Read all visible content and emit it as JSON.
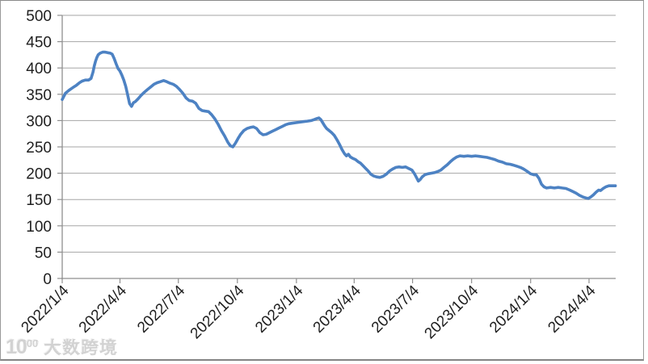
{
  "chart_data": {
    "type": "line",
    "title": "",
    "xlabel": "",
    "ylabel": "",
    "legend": "none",
    "grid": true,
    "ylim": [
      0,
      500
    ],
    "yticks": [
      0,
      50,
      100,
      150,
      200,
      250,
      300,
      350,
      400,
      450,
      500
    ],
    "xtick_labels": [
      "2022/1/4",
      "2022/4/4",
      "2022/7/4",
      "2022/10/4",
      "2023/1/4",
      "2023/4/4",
      "2023/7/4",
      "2023/10/4",
      "2024/1/4",
      "2024/4/4"
    ],
    "series": [
      {
        "name": "series-1",
        "color": "#4D82C3",
        "points": [
          [
            "2022/1/4",
            340
          ],
          [
            "2022/1/9",
            352
          ],
          [
            "2022/1/15",
            358
          ],
          [
            "2022/1/21",
            363
          ],
          [
            "2022/1/26",
            367
          ],
          [
            "2022/1/31",
            372
          ],
          [
            "2022/2/4",
            375
          ],
          [
            "2022/2/9",
            377
          ],
          [
            "2022/2/14",
            377
          ],
          [
            "2022/2/18",
            380
          ],
          [
            "2022/2/21",
            392
          ],
          [
            "2022/2/23",
            404
          ],
          [
            "2022/2/25",
            413
          ],
          [
            "2022/2/27",
            420
          ],
          [
            "2022/3/1",
            425
          ],
          [
            "2022/3/4",
            428
          ],
          [
            "2022/3/8",
            430
          ],
          [
            "2022/3/12",
            430
          ],
          [
            "2022/3/16",
            429
          ],
          [
            "2022/3/20",
            428
          ],
          [
            "2022/3/23",
            426
          ],
          [
            "2022/3/26",
            418
          ],
          [
            "2022/3/29",
            408
          ],
          [
            "2022/4/1",
            399
          ],
          [
            "2022/4/4",
            394
          ],
          [
            "2022/4/7",
            386
          ],
          [
            "2022/4/10",
            377
          ],
          [
            "2022/4/13",
            365
          ],
          [
            "2022/4/16",
            349
          ],
          [
            "2022/4/19",
            332
          ],
          [
            "2022/4/22",
            327
          ],
          [
            "2022/4/25",
            334
          ],
          [
            "2022/4/28",
            336
          ],
          [
            "2022/5/2",
            341
          ],
          [
            "2022/5/7",
            348
          ],
          [
            "2022/5/12",
            354
          ],
          [
            "2022/5/17",
            359
          ],
          [
            "2022/5/22",
            364
          ],
          [
            "2022/5/27",
            369
          ],
          [
            "2022/6/1",
            372
          ],
          [
            "2022/6/6",
            374
          ],
          [
            "2022/6/11",
            376
          ],
          [
            "2022/6/16",
            374
          ],
          [
            "2022/6/21",
            371
          ],
          [
            "2022/6/26",
            369
          ],
          [
            "2022/7/1",
            365
          ],
          [
            "2022/7/6",
            359
          ],
          [
            "2022/7/11",
            352
          ],
          [
            "2022/7/16",
            343
          ],
          [
            "2022/7/21",
            338
          ],
          [
            "2022/7/26",
            337
          ],
          [
            "2022/7/31",
            333
          ],
          [
            "2022/8/5",
            323
          ],
          [
            "2022/8/10",
            319
          ],
          [
            "2022/8/15",
            318
          ],
          [
            "2022/8/20",
            317
          ],
          [
            "2022/8/25",
            311
          ],
          [
            "2022/8/30",
            303
          ],
          [
            "2022/9/4",
            293
          ],
          [
            "2022/9/9",
            281
          ],
          [
            "2022/9/14",
            271
          ],
          [
            "2022/9/19",
            259
          ],
          [
            "2022/9/23",
            252
          ],
          [
            "2022/9/27",
            250
          ],
          [
            "2022/10/1",
            257
          ],
          [
            "2022/10/5",
            266
          ],
          [
            "2022/10/9",
            274
          ],
          [
            "2022/10/14",
            281
          ],
          [
            "2022/10/19",
            285
          ],
          [
            "2022/10/24",
            287
          ],
          [
            "2022/10/29",
            288
          ],
          [
            "2022/11/3",
            285
          ],
          [
            "2022/11/8",
            277
          ],
          [
            "2022/11/13",
            273
          ],
          [
            "2022/11/18",
            274
          ],
          [
            "2022/11/23",
            277
          ],
          [
            "2022/11/28",
            280
          ],
          [
            "2022/12/3",
            283
          ],
          [
            "2022/12/8",
            286
          ],
          [
            "2022/12/13",
            289
          ],
          [
            "2022/12/18",
            292
          ],
          [
            "2022/12/23",
            294
          ],
          [
            "2022/12/28",
            295
          ],
          [
            "2023/1/3",
            296
          ],
          [
            "2023/1/9",
            297
          ],
          [
            "2023/1/15",
            298
          ],
          [
            "2023/1/21",
            299
          ],
          [
            "2023/1/27",
            300
          ],
          [
            "2023/2/1",
            302
          ],
          [
            "2023/2/5",
            304
          ],
          [
            "2023/2/8",
            305
          ],
          [
            "2023/2/11",
            302
          ],
          [
            "2023/2/14",
            296
          ],
          [
            "2023/2/17",
            290
          ],
          [
            "2023/2/20",
            285
          ],
          [
            "2023/2/24",
            281
          ],
          [
            "2023/2/28",
            277
          ],
          [
            "2023/3/4",
            272
          ],
          [
            "2023/3/8",
            264
          ],
          [
            "2023/3/12",
            255
          ],
          [
            "2023/3/16",
            245
          ],
          [
            "2023/3/20",
            237
          ],
          [
            "2023/3/23",
            233
          ],
          [
            "2023/3/26",
            236
          ],
          [
            "2023/3/29",
            231
          ],
          [
            "2023/4/2",
            228
          ],
          [
            "2023/4/6",
            226
          ],
          [
            "2023/4/10",
            222
          ],
          [
            "2023/4/14",
            219
          ],
          [
            "2023/4/18",
            214
          ],
          [
            "2023/4/22",
            209
          ],
          [
            "2023/4/26",
            204
          ],
          [
            "2023/4/30",
            198
          ],
          [
            "2023/5/4",
            195
          ],
          [
            "2023/5/9",
            193
          ],
          [
            "2023/5/14",
            192
          ],
          [
            "2023/5/19",
            194
          ],
          [
            "2023/5/24",
            198
          ],
          [
            "2023/5/29",
            204
          ],
          [
            "2023/6/3",
            208
          ],
          [
            "2023/6/8",
            211
          ],
          [
            "2023/6/13",
            212
          ],
          [
            "2023/6/18",
            211
          ],
          [
            "2023/6/23",
            212
          ],
          [
            "2023/6/28",
            209
          ],
          [
            "2023/7/3",
            206
          ],
          [
            "2023/7/7",
            199
          ],
          [
            "2023/7/10",
            192
          ],
          [
            "2023/7/13",
            185
          ],
          [
            "2023/7/16",
            188
          ],
          [
            "2023/7/19",
            193
          ],
          [
            "2023/7/23",
            197
          ],
          [
            "2023/7/28",
            199
          ],
          [
            "2023/8/2",
            200
          ],
          [
            "2023/8/7",
            201
          ],
          [
            "2023/8/12",
            203
          ],
          [
            "2023/8/17",
            206
          ],
          [
            "2023/8/22",
            211
          ],
          [
            "2023/8/27",
            216
          ],
          [
            "2023/9/1",
            222
          ],
          [
            "2023/9/6",
            227
          ],
          [
            "2023/9/11",
            231
          ],
          [
            "2023/9/16",
            233
          ],
          [
            "2023/9/22",
            232
          ],
          [
            "2023/9/28",
            233
          ],
          [
            "2023/10/4",
            232
          ],
          [
            "2023/10/10",
            233
          ],
          [
            "2023/10/16",
            232
          ],
          [
            "2023/10/22",
            231
          ],
          [
            "2023/10/28",
            230
          ],
          [
            "2023/11/3",
            228
          ],
          [
            "2023/11/9",
            226
          ],
          [
            "2023/11/15",
            223
          ],
          [
            "2023/11/21",
            221
          ],
          [
            "2023/11/27",
            218
          ],
          [
            "2023/12/3",
            217
          ],
          [
            "2023/12/9",
            215
          ],
          [
            "2023/12/14",
            213
          ],
          [
            "2023/12/19",
            211
          ],
          [
            "2023/12/24",
            208
          ],
          [
            "2023/12/29",
            204
          ],
          [
            "2024/1/4",
            199
          ],
          [
            "2024/1/9",
            197
          ],
          [
            "2024/1/13",
            197
          ],
          [
            "2024/1/17",
            190
          ],
          [
            "2024/1/21",
            179
          ],
          [
            "2024/1/25",
            174
          ],
          [
            "2024/1/29",
            172
          ],
          [
            "2024/2/4",
            173
          ],
          [
            "2024/2/10",
            172
          ],
          [
            "2024/2/16",
            173
          ],
          [
            "2024/2/22",
            172
          ],
          [
            "2024/2/28",
            171
          ],
          [
            "2024/3/5",
            168
          ],
          [
            "2024/3/10",
            165
          ],
          [
            "2024/3/15",
            162
          ],
          [
            "2024/3/20",
            158
          ],
          [
            "2024/3/25",
            155
          ],
          [
            "2024/3/30",
            153
          ],
          [
            "2024/4/3",
            152
          ],
          [
            "2024/4/7",
            155
          ],
          [
            "2024/4/11",
            159
          ],
          [
            "2024/4/15",
            164
          ],
          [
            "2024/4/19",
            168
          ],
          [
            "2024/4/22",
            167
          ],
          [
            "2024/4/26",
            171
          ],
          [
            "2024/4/30",
            174
          ],
          [
            "2024/5/5",
            176
          ],
          [
            "2024/5/10",
            176
          ],
          [
            "2024/5/15",
            176
          ]
        ]
      }
    ],
    "colors": {
      "gridline": "#a6a6a6",
      "axis": "#8f8f8f",
      "tick_label": "#1f1f1f"
    }
  },
  "watermark": {
    "logo_base": "10",
    "logo_sup": "00",
    "text": "大数跨境"
  }
}
